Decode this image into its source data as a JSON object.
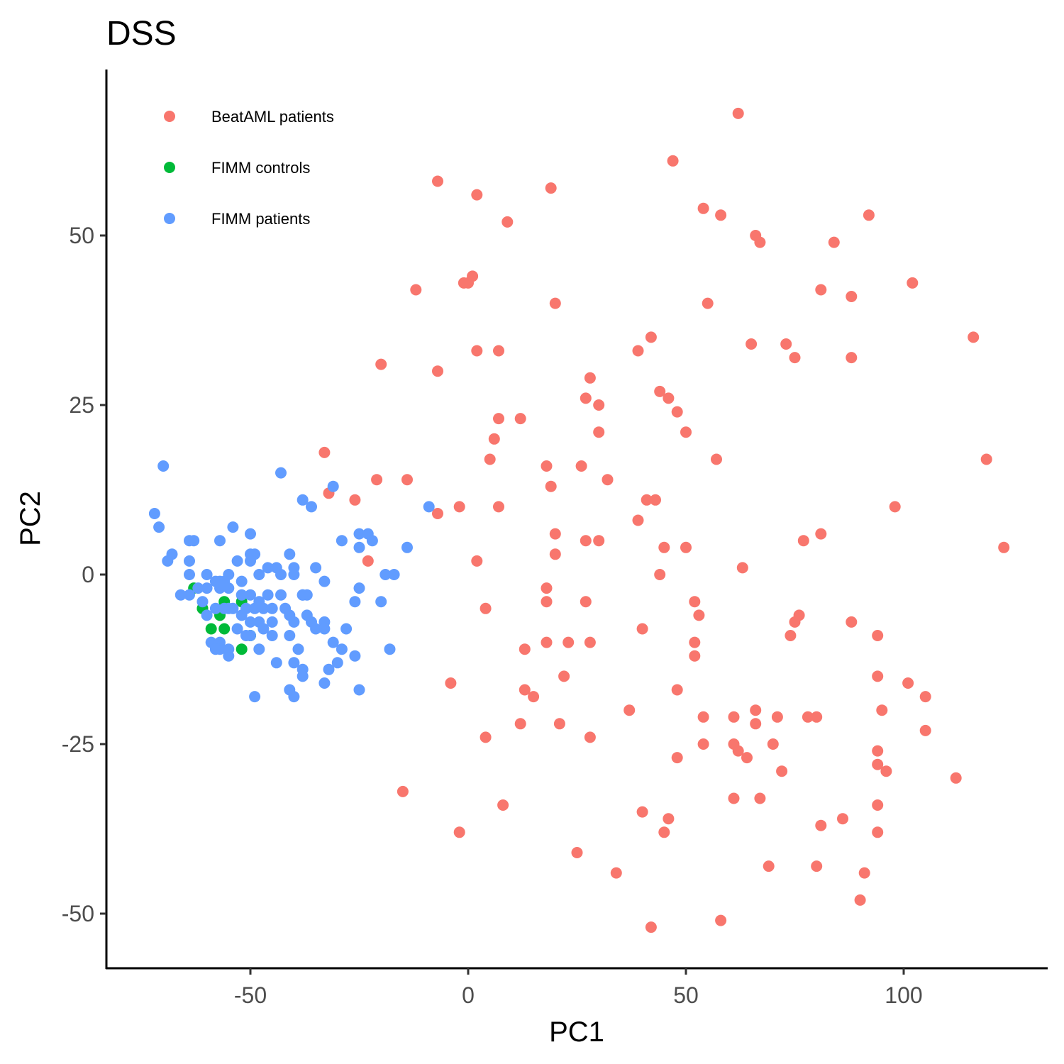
{
  "chart_data": {
    "type": "scatter",
    "title": "DSS",
    "xlabel": "PC1",
    "ylabel": "PC2",
    "xlim": [
      -82,
      132
    ],
    "ylim": [
      -57,
      74
    ],
    "x_ticks": [
      -50,
      0,
      50,
      100
    ],
    "y_ticks": [
      -50,
      -25,
      0,
      25,
      50
    ],
    "grid": false,
    "legend_position": "top-left",
    "series": [
      {
        "name": "BeatAML patients",
        "color": "#F8766D",
        "points": [
          [
            62,
            68
          ],
          [
            47,
            61
          ],
          [
            -7,
            58
          ],
          [
            2,
            56
          ],
          [
            19,
            57
          ],
          [
            54,
            54
          ],
          [
            58,
            53
          ],
          [
            92,
            53
          ],
          [
            9,
            52
          ],
          [
            66,
            50
          ],
          [
            67,
            49
          ],
          [
            84,
            49
          ],
          [
            -1,
            43
          ],
          [
            0,
            43
          ],
          [
            1,
            44
          ],
          [
            -12,
            42
          ],
          [
            20,
            40
          ],
          [
            55,
            40
          ],
          [
            81,
            42
          ],
          [
            88,
            41
          ],
          [
            102,
            43
          ],
          [
            2,
            33
          ],
          [
            7,
            33
          ],
          [
            39,
            33
          ],
          [
            42,
            35
          ],
          [
            65,
            34
          ],
          [
            73,
            34
          ],
          [
            75,
            32
          ],
          [
            88,
            32
          ],
          [
            116,
            35
          ],
          [
            -20,
            31
          ],
          [
            -7,
            30
          ],
          [
            28,
            29
          ],
          [
            27,
            26
          ],
          [
            30,
            25
          ],
          [
            44,
            27
          ],
          [
            46,
            26
          ],
          [
            48,
            24
          ],
          [
            7,
            23
          ],
          [
            12,
            23
          ],
          [
            30,
            21
          ],
          [
            50,
            21
          ],
          [
            6,
            20
          ],
          [
            -33,
            18
          ],
          [
            5,
            17
          ],
          [
            18,
            16
          ],
          [
            26,
            16
          ],
          [
            57,
            17
          ],
          [
            119,
            17
          ],
          [
            -21,
            14
          ],
          [
            -14,
            14
          ],
          [
            19,
            13
          ],
          [
            32,
            14
          ],
          [
            -32,
            12
          ],
          [
            -26,
            11
          ],
          [
            -7,
            9
          ],
          [
            -2,
            10
          ],
          [
            7,
            10
          ],
          [
            41,
            11
          ],
          [
            43,
            11
          ],
          [
            98,
            10
          ],
          [
            39,
            8
          ],
          [
            20,
            6
          ],
          [
            27,
            5
          ],
          [
            30,
            5
          ],
          [
            45,
            4
          ],
          [
            50,
            4
          ],
          [
            77,
            5
          ],
          [
            81,
            6
          ],
          [
            123,
            4
          ],
          [
            -23,
            2
          ],
          [
            2,
            2
          ],
          [
            20,
            3
          ],
          [
            63,
            1
          ],
          [
            44,
            0
          ],
          [
            18,
            -2
          ],
          [
            4,
            -5
          ],
          [
            18,
            -4
          ],
          [
            27,
            -4
          ],
          [
            52,
            -4
          ],
          [
            53,
            -6
          ],
          [
            76,
            -6
          ],
          [
            75,
            -7
          ],
          [
            88,
            -7
          ],
          [
            40,
            -8
          ],
          [
            74,
            -9
          ],
          [
            94,
            -9
          ],
          [
            52,
            -10
          ],
          [
            18,
            -10
          ],
          [
            23,
            -10
          ],
          [
            28,
            -10
          ],
          [
            13,
            -11
          ],
          [
            52,
            -12
          ],
          [
            -4,
            -16
          ],
          [
            22,
            -15
          ],
          [
            48,
            -17
          ],
          [
            13,
            -17
          ],
          [
            15,
            -18
          ],
          [
            94,
            -15
          ],
          [
            101,
            -16
          ],
          [
            105,
            -18
          ],
          [
            95,
            -20
          ],
          [
            37,
            -20
          ],
          [
            12,
            -22
          ],
          [
            21,
            -22
          ],
          [
            54,
            -21
          ],
          [
            61,
            -21
          ],
          [
            66,
            -20
          ],
          [
            66,
            -22
          ],
          [
            71,
            -21
          ],
          [
            78,
            -21
          ],
          [
            80,
            -21
          ],
          [
            105,
            -23
          ],
          [
            4,
            -24
          ],
          [
            28,
            -24
          ],
          [
            54,
            -25
          ],
          [
            61,
            -25
          ],
          [
            62,
            -26
          ],
          [
            70,
            -25
          ],
          [
            94,
            -26
          ],
          [
            48,
            -27
          ],
          [
            64,
            -27
          ],
          [
            94,
            -28
          ],
          [
            96,
            -29
          ],
          [
            72,
            -29
          ],
          [
            112,
            -30
          ],
          [
            -15,
            -32
          ],
          [
            61,
            -33
          ],
          [
            67,
            -33
          ],
          [
            8,
            -34
          ],
          [
            94,
            -34
          ],
          [
            40,
            -35
          ],
          [
            46,
            -36
          ],
          [
            86,
            -36
          ],
          [
            -2,
            -38
          ],
          [
            45,
            -38
          ],
          [
            81,
            -37
          ],
          [
            94,
            -38
          ],
          [
            25,
            -41
          ],
          [
            69,
            -43
          ],
          [
            34,
            -44
          ],
          [
            80,
            -43
          ],
          [
            91,
            -44
          ],
          [
            90,
            -48
          ],
          [
            58,
            -51
          ],
          [
            42,
            -52
          ]
        ]
      },
      {
        "name": "FIMM controls",
        "color": "#00BA38",
        "points": [
          [
            -63,
            -2
          ],
          [
            -61,
            -5
          ],
          [
            -56,
            -4
          ],
          [
            -52,
            -4
          ],
          [
            -57,
            -6
          ],
          [
            -59,
            -8
          ],
          [
            -56,
            -8
          ],
          [
            -50,
            -9
          ],
          [
            -52,
            -11
          ],
          [
            -61,
            -5
          ]
        ]
      },
      {
        "name": "FIMM patients",
        "color": "#619CFF",
        "points": [
          [
            -70,
            16
          ],
          [
            -43,
            15
          ],
          [
            -31,
            13
          ],
          [
            -38,
            11
          ],
          [
            -72,
            9
          ],
          [
            -36,
            10
          ],
          [
            -9,
            10
          ],
          [
            -71,
            7
          ],
          [
            -54,
            7
          ],
          [
            -50,
            6
          ],
          [
            -25,
            6
          ],
          [
            -23,
            6
          ],
          [
            -22,
            5
          ],
          [
            -64,
            5
          ],
          [
            -63,
            5
          ],
          [
            -57,
            5
          ],
          [
            -29,
            5
          ],
          [
            -50,
            3
          ],
          [
            -49,
            3
          ],
          [
            -68,
            3
          ],
          [
            -69,
            2
          ],
          [
            -41,
            3
          ],
          [
            -14,
            4
          ],
          [
            -25,
            4
          ],
          [
            -64,
            2
          ],
          [
            -53,
            2
          ],
          [
            -50,
            2
          ],
          [
            -46,
            1
          ],
          [
            -44,
            1
          ],
          [
            -40,
            1
          ],
          [
            -35,
            1
          ],
          [
            -48,
            0
          ],
          [
            -43,
            0
          ],
          [
            -40,
            0
          ],
          [
            -19,
            0
          ],
          [
            -17,
            0
          ],
          [
            -64,
            0
          ],
          [
            -60,
            0
          ],
          [
            -58,
            -1
          ],
          [
            -55,
            0
          ],
          [
            -56,
            -1
          ],
          [
            -57,
            -1
          ],
          [
            -52,
            -1
          ],
          [
            -60,
            -2
          ],
          [
            -62,
            -2
          ],
          [
            -64,
            -3
          ],
          [
            -66,
            -3
          ],
          [
            -57,
            -2
          ],
          [
            -55,
            -2
          ],
          [
            -52,
            -3
          ],
          [
            -50,
            -3
          ],
          [
            -48,
            -4
          ],
          [
            -46,
            -3
          ],
          [
            -43,
            -3
          ],
          [
            -38,
            -3
          ],
          [
            -33,
            -1
          ],
          [
            -25,
            -2
          ],
          [
            -38,
            -3
          ],
          [
            -37,
            -3
          ],
          [
            -61,
            -4
          ],
          [
            -60,
            -6
          ],
          [
            -58,
            -5
          ],
          [
            -55,
            -5
          ],
          [
            -54,
            -5
          ],
          [
            -51,
            -5
          ],
          [
            -49,
            -5
          ],
          [
            -47,
            -5
          ],
          [
            -45,
            -5
          ],
          [
            -42,
            -5
          ],
          [
            -41,
            -6
          ],
          [
            -37,
            -6
          ],
          [
            -33,
            -7
          ],
          [
            -26,
            -4
          ],
          [
            -20,
            -4
          ],
          [
            -36,
            -7
          ],
          [
            -40,
            -7
          ],
          [
            -48,
            -7
          ],
          [
            -52,
            -6
          ],
          [
            -50,
            -7
          ],
          [
            -47,
            -8
          ],
          [
            -53,
            -8
          ],
          [
            -51,
            -9
          ],
          [
            -45,
            -9
          ],
          [
            -33,
            -8
          ],
          [
            -28,
            -8
          ],
          [
            -59,
            -10
          ],
          [
            -57,
            -10
          ],
          [
            -50,
            -9
          ],
          [
            -31,
            -10
          ],
          [
            -57,
            -11
          ],
          [
            -55,
            -11
          ],
          [
            -48,
            -11
          ],
          [
            -39,
            -11
          ],
          [
            -29,
            -11
          ],
          [
            -26,
            -12
          ],
          [
            -18,
            -11
          ],
          [
            -44,
            -13
          ],
          [
            -40,
            -13
          ],
          [
            -30,
            -13
          ],
          [
            -38,
            -14
          ],
          [
            -38,
            -15
          ],
          [
            -32,
            -14
          ],
          [
            -33,
            -16
          ],
          [
            -41,
            -17
          ],
          [
            -40,
            -18
          ],
          [
            -25,
            -17
          ],
          [
            -49,
            -18
          ],
          [
            -55,
            -12
          ],
          [
            -58,
            -11
          ],
          [
            -56,
            -5
          ],
          [
            -45,
            -7
          ],
          [
            -41,
            -9
          ],
          [
            -35,
            -8
          ]
        ]
      }
    ]
  }
}
